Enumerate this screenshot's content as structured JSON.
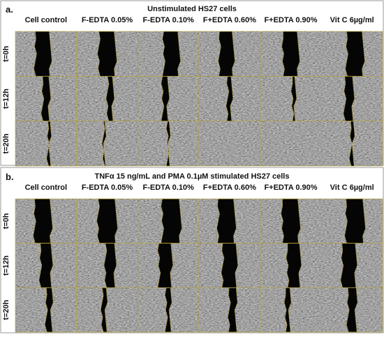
{
  "panels": [
    {
      "label": "a.",
      "title": "Unstimulated HS27 cells",
      "columns": [
        "Cell control",
        "F-EDTA 0.05%",
        "F-EDTA 0.10%",
        "F+EDTA 0.60%",
        "F+EDTA 0.90%",
        "Vit C 6µg/ml"
      ],
      "rows": [
        "t=0h",
        "t=12h",
        "t=20h"
      ]
    },
    {
      "label": "b.",
      "title": "TNFα 15 ng/mL and PMA 0.1µM stimulated HS27 cells",
      "columns": [
        "Cell control",
        "F-EDTA 0.05%",
        "F-EDTA 0.10%",
        "F+EDTA 0.60%",
        "F+EDTA 0.90%",
        "Vit C 6µg/ml"
      ],
      "rows": [
        "t=0h",
        "t=12h",
        "t=20h"
      ]
    }
  ]
}
